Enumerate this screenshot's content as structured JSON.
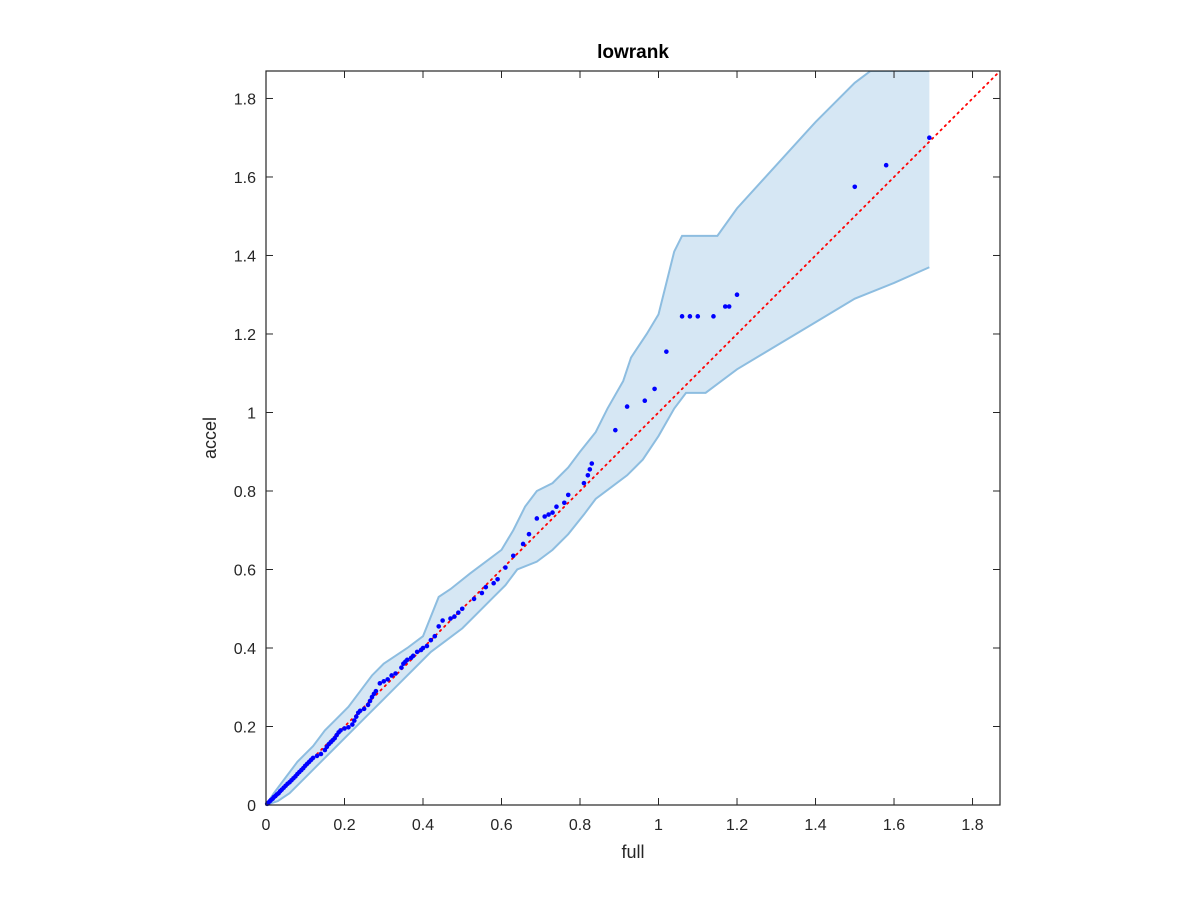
{
  "chart_data": {
    "type": "scatter",
    "title": "lowrank",
    "xlabel": "full",
    "ylabel": "accel",
    "xlim": [
      0,
      1.87
    ],
    "ylim": [
      0,
      1.87
    ],
    "xticks": [
      "0",
      "0.2",
      "0.4",
      "0.6",
      "0.8",
      "1",
      "1.2",
      "1.4",
      "1.6",
      "1.8"
    ],
    "yticks": [
      "0",
      "0.2",
      "0.4",
      "0.6",
      "0.8",
      "1",
      "1.2",
      "1.4",
      "1.6",
      "1.8"
    ],
    "grid": false,
    "legend": "none",
    "colors": {
      "points": "#0000ff",
      "reference_line": "#ff0000",
      "band_fill": "#d6e7f4",
      "band_edge": "#8dbde0",
      "axes": "#262626"
    },
    "reference_line": {
      "style": "dotted",
      "from": [
        0,
        0
      ],
      "to": [
        1.87,
        1.87
      ]
    },
    "band": {
      "upper": [
        [
          0,
          0
        ],
        [
          0.02,
          0.03
        ],
        [
          0.05,
          0.07
        ],
        [
          0.08,
          0.11
        ],
        [
          0.12,
          0.15
        ],
        [
          0.15,
          0.19
        ],
        [
          0.18,
          0.22
        ],
        [
          0.21,
          0.25
        ],
        [
          0.24,
          0.29
        ],
        [
          0.27,
          0.33
        ],
        [
          0.3,
          0.36
        ],
        [
          0.33,
          0.38
        ],
        [
          0.36,
          0.4
        ],
        [
          0.4,
          0.43
        ],
        [
          0.44,
          0.53
        ],
        [
          0.47,
          0.55
        ],
        [
          0.52,
          0.59
        ],
        [
          0.56,
          0.62
        ],
        [
          0.6,
          0.65
        ],
        [
          0.63,
          0.7
        ],
        [
          0.66,
          0.76
        ],
        [
          0.69,
          0.8
        ],
        [
          0.73,
          0.82
        ],
        [
          0.77,
          0.86
        ],
        [
          0.8,
          0.9
        ],
        [
          0.84,
          0.95
        ],
        [
          0.87,
          1.01
        ],
        [
          0.91,
          1.08
        ],
        [
          0.93,
          1.14
        ],
        [
          0.97,
          1.2
        ],
        [
          1.0,
          1.25
        ],
        [
          1.02,
          1.33
        ],
        [
          1.04,
          1.41
        ],
        [
          1.06,
          1.45
        ],
        [
          1.15,
          1.45
        ],
        [
          1.2,
          1.52
        ],
        [
          1.3,
          1.63
        ],
        [
          1.4,
          1.74
        ],
        [
          1.5,
          1.84
        ],
        [
          1.54,
          1.87
        ],
        [
          1.69,
          1.87
        ]
      ],
      "lower": [
        [
          0,
          0
        ],
        [
          0.03,
          0.01
        ],
        [
          0.06,
          0.03
        ],
        [
          0.1,
          0.07
        ],
        [
          0.14,
          0.11
        ],
        [
          0.18,
          0.15
        ],
        [
          0.22,
          0.19
        ],
        [
          0.26,
          0.23
        ],
        [
          0.3,
          0.27
        ],
        [
          0.34,
          0.31
        ],
        [
          0.38,
          0.35
        ],
        [
          0.42,
          0.39
        ],
        [
          0.46,
          0.42
        ],
        [
          0.5,
          0.45
        ],
        [
          0.54,
          0.49
        ],
        [
          0.58,
          0.53
        ],
        [
          0.61,
          0.56
        ],
        [
          0.64,
          0.6
        ],
        [
          0.69,
          0.62
        ],
        [
          0.73,
          0.65
        ],
        [
          0.77,
          0.69
        ],
        [
          0.81,
          0.74
        ],
        [
          0.84,
          0.78
        ],
        [
          0.88,
          0.81
        ],
        [
          0.92,
          0.84
        ],
        [
          0.96,
          0.88
        ],
        [
          1.0,
          0.94
        ],
        [
          1.04,
          1.01
        ],
        [
          1.07,
          1.05
        ],
        [
          1.12,
          1.05
        ],
        [
          1.16,
          1.08
        ],
        [
          1.2,
          1.11
        ],
        [
          1.3,
          1.17
        ],
        [
          1.4,
          1.23
        ],
        [
          1.5,
          1.29
        ],
        [
          1.6,
          1.33
        ],
        [
          1.69,
          1.37
        ]
      ]
    },
    "points": [
      [
        0.003,
        0.003
      ],
      [
        0.006,
        0.006
      ],
      [
        0.01,
        0.01
      ],
      [
        0.013,
        0.013
      ],
      [
        0.017,
        0.016
      ],
      [
        0.02,
        0.02
      ],
      [
        0.024,
        0.023
      ],
      [
        0.028,
        0.027
      ],
      [
        0.032,
        0.03
      ],
      [
        0.036,
        0.035
      ],
      [
        0.04,
        0.039
      ],
      [
        0.045,
        0.044
      ],
      [
        0.05,
        0.049
      ],
      [
        0.055,
        0.054
      ],
      [
        0.06,
        0.058
      ],
      [
        0.065,
        0.063
      ],
      [
        0.07,
        0.068
      ],
      [
        0.075,
        0.073
      ],
      [
        0.08,
        0.079
      ],
      [
        0.085,
        0.084
      ],
      [
        0.09,
        0.089
      ],
      [
        0.095,
        0.094
      ],
      [
        0.1,
        0.1
      ],
      [
        0.105,
        0.105
      ],
      [
        0.11,
        0.11
      ],
      [
        0.115,
        0.115
      ],
      [
        0.12,
        0.12
      ],
      [
        0.13,
        0.125
      ],
      [
        0.14,
        0.13
      ],
      [
        0.15,
        0.14
      ],
      [
        0.155,
        0.148
      ],
      [
        0.16,
        0.155
      ],
      [
        0.165,
        0.16
      ],
      [
        0.17,
        0.165
      ],
      [
        0.175,
        0.17
      ],
      [
        0.18,
        0.178
      ],
      [
        0.185,
        0.185
      ],
      [
        0.19,
        0.19
      ],
      [
        0.2,
        0.195
      ],
      [
        0.21,
        0.198
      ],
      [
        0.22,
        0.205
      ],
      [
        0.225,
        0.215
      ],
      [
        0.23,
        0.225
      ],
      [
        0.235,
        0.235
      ],
      [
        0.24,
        0.24
      ],
      [
        0.25,
        0.245
      ],
      [
        0.26,
        0.255
      ],
      [
        0.265,
        0.265
      ],
      [
        0.27,
        0.275
      ],
      [
        0.275,
        0.283
      ],
      [
        0.28,
        0.29
      ],
      [
        0.29,
        0.31
      ],
      [
        0.3,
        0.315
      ],
      [
        0.31,
        0.32
      ],
      [
        0.32,
        0.33
      ],
      [
        0.33,
        0.335
      ],
      [
        0.345,
        0.35
      ],
      [
        0.35,
        0.36
      ],
      [
        0.355,
        0.365
      ],
      [
        0.36,
        0.37
      ],
      [
        0.37,
        0.375
      ],
      [
        0.375,
        0.38
      ],
      [
        0.385,
        0.39
      ],
      [
        0.395,
        0.395
      ],
      [
        0.4,
        0.4
      ],
      [
        0.41,
        0.405
      ],
      [
        0.42,
        0.42
      ],
      [
        0.43,
        0.43
      ],
      [
        0.44,
        0.455
      ],
      [
        0.45,
        0.47
      ],
      [
        0.47,
        0.475
      ],
      [
        0.48,
        0.48
      ],
      [
        0.49,
        0.49
      ],
      [
        0.5,
        0.5
      ],
      [
        0.53,
        0.525
      ],
      [
        0.55,
        0.54
      ],
      [
        0.56,
        0.555
      ],
      [
        0.58,
        0.565
      ],
      [
        0.59,
        0.575
      ],
      [
        0.61,
        0.605
      ],
      [
        0.63,
        0.635
      ],
      [
        0.655,
        0.665
      ],
      [
        0.67,
        0.69
      ],
      [
        0.69,
        0.73
      ],
      [
        0.71,
        0.735
      ],
      [
        0.72,
        0.74
      ],
      [
        0.73,
        0.745
      ],
      [
        0.74,
        0.76
      ],
      [
        0.76,
        0.77
      ],
      [
        0.77,
        0.79
      ],
      [
        0.81,
        0.82
      ],
      [
        0.82,
        0.84
      ],
      [
        0.825,
        0.855
      ],
      [
        0.83,
        0.87
      ],
      [
        0.89,
        0.955
      ],
      [
        0.92,
        1.015
      ],
      [
        0.965,
        1.03
      ],
      [
        0.99,
        1.06
      ],
      [
        1.02,
        1.155
      ],
      [
        1.06,
        1.245
      ],
      [
        1.08,
        1.245
      ],
      [
        1.1,
        1.245
      ],
      [
        1.14,
        1.245
      ],
      [
        1.17,
        1.27
      ],
      [
        1.18,
        1.27
      ],
      [
        1.2,
        1.3
      ],
      [
        1.5,
        1.575
      ],
      [
        1.58,
        1.63
      ],
      [
        1.69,
        1.7
      ]
    ]
  }
}
